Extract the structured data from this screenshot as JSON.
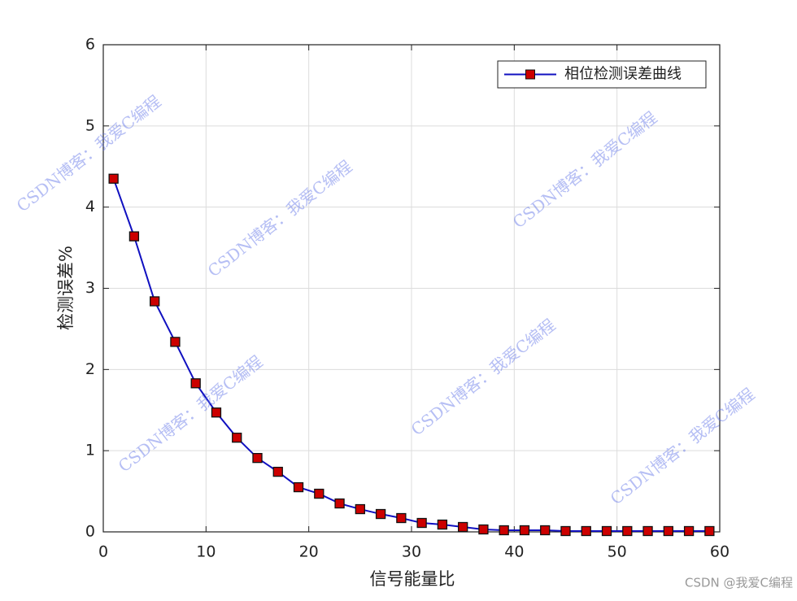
{
  "chart_data": {
    "type": "line",
    "xlabel": "信号能量比",
    "ylabel": "检测误差%",
    "x": [
      1,
      3,
      5,
      7,
      9,
      11,
      13,
      15,
      17,
      19,
      21,
      23,
      25,
      27,
      29,
      31,
      33,
      35,
      37,
      39,
      41,
      43,
      45,
      47,
      49,
      51,
      53,
      55,
      57,
      59
    ],
    "series": [
      {
        "name": "相位检测误差曲线",
        "color": "#1010c0",
        "marker_color": "#cc0000",
        "values": [
          4.35,
          3.64,
          2.84,
          2.34,
          1.83,
          1.47,
          1.16,
          0.91,
          0.74,
          0.55,
          0.47,
          0.35,
          0.28,
          0.22,
          0.17,
          0.11,
          0.09,
          0.06,
          0.03,
          0.02,
          0.02,
          0.02,
          0.01,
          0.01,
          0.01,
          0.01,
          0.01,
          0.01,
          0.01,
          0.01
        ]
      }
    ],
    "xlim": [
      0,
      60
    ],
    "xticks": [
      0,
      10,
      20,
      30,
      40,
      50,
      60
    ],
    "ylim": [
      0,
      6
    ],
    "yticks": [
      0,
      1,
      2,
      3,
      4,
      5,
      6
    ],
    "grid": true,
    "legend": "top-right"
  },
  "watermarks": [
    "CSDN博客：我爱C编程",
    "CSDN @我爱C编程"
  ]
}
